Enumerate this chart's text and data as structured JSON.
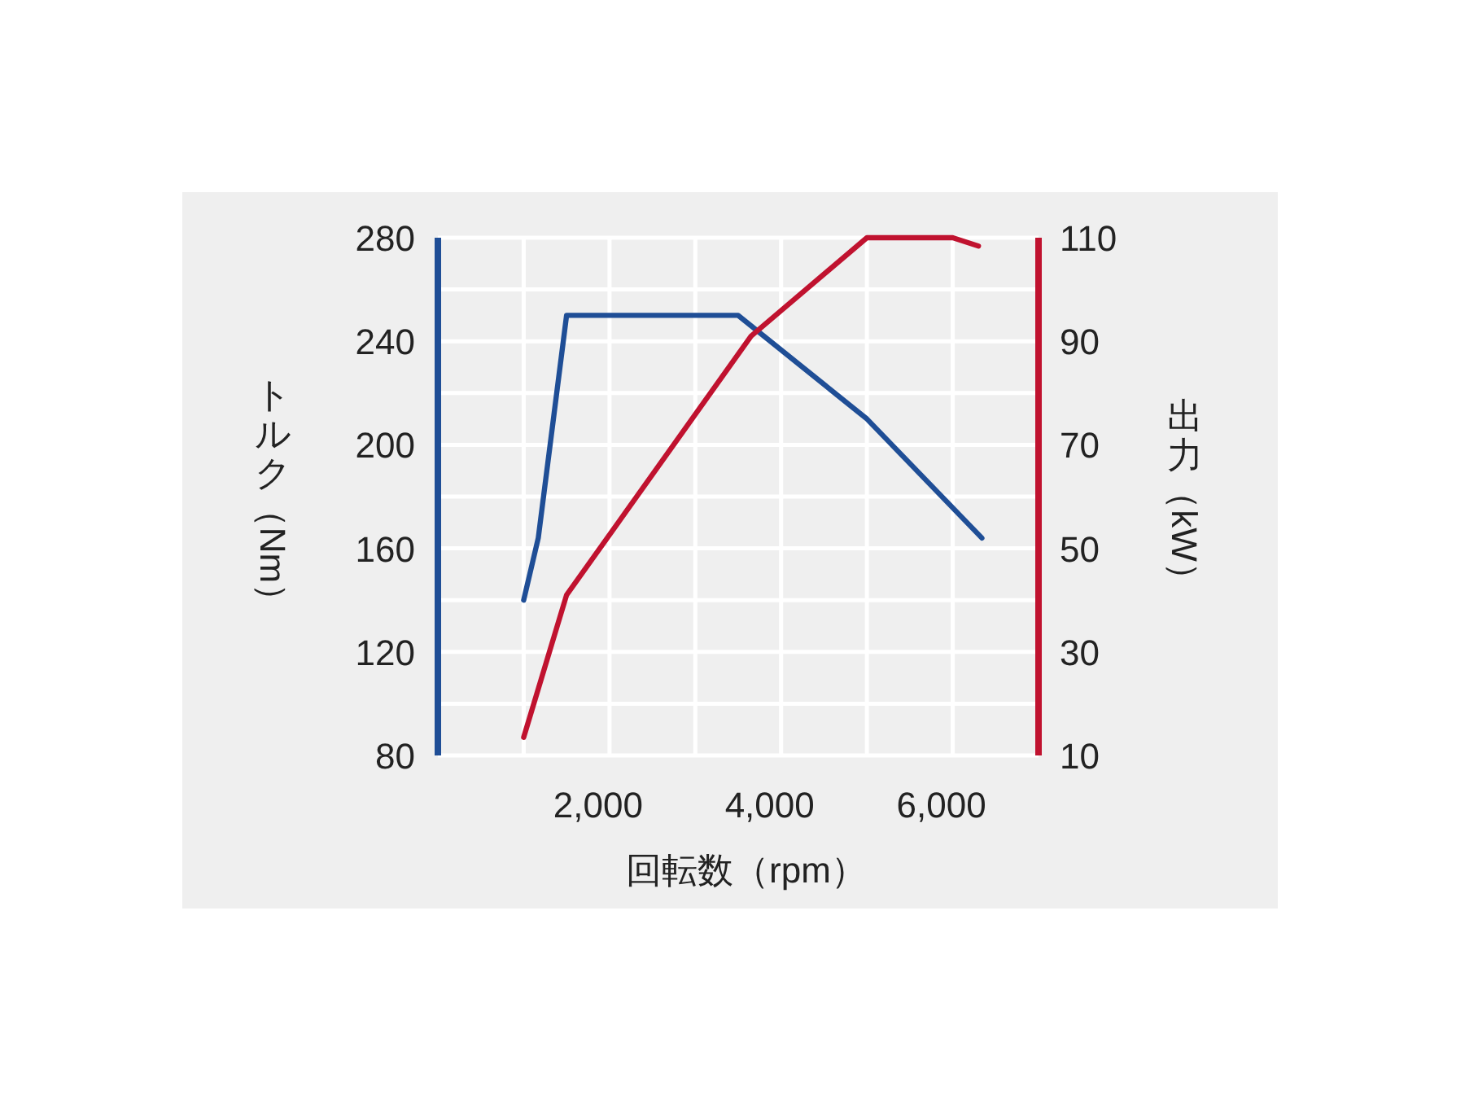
{
  "chart_data": {
    "type": "line",
    "xlabel": "回転数（rpm）",
    "ylabel": "トルク（Nm）",
    "y2label": "出力（kW）",
    "xlim": [
      0,
      7000
    ],
    "xticks": [
      {
        "value": 1000,
        "label": null
      },
      {
        "value": 2000,
        "label": "2,000"
      },
      {
        "value": 3000,
        "label": null
      },
      {
        "value": 4000,
        "label": "4,000"
      },
      {
        "value": 5000,
        "label": null
      },
      {
        "value": 6000,
        "label": "6,000"
      }
    ],
    "ylim": [
      80,
      280
    ],
    "yticks": [
      80,
      {
        "value": 100,
        "label": null
      },
      120,
      {
        "value": 140,
        "label": null
      },
      160,
      {
        "value": 180,
        "label": null
      },
      200,
      {
        "value": 220,
        "label": null
      },
      240,
      {
        "value": 260,
        "label": null
      },
      280
    ],
    "y2lim": [
      10,
      110
    ],
    "y2ticks": [
      10,
      30,
      50,
      70,
      90,
      110
    ],
    "grid": true,
    "line_style": "solid",
    "series": [
      {
        "color": "#1f4e96",
        "x": [
          1000,
          1170,
          1500,
          3500,
          5000,
          6340
        ],
        "values": [
          140,
          164,
          250,
          250,
          210,
          164
        ]
      },
      {
        "color": "#c0122f",
        "axis": "y2",
        "x": [
          1000,
          1500,
          3650,
          5000,
          6000,
          6300
        ],
        "values": [
          13.5,
          41,
          91,
          110,
          110,
          108.4
        ]
      }
    ]
  }
}
